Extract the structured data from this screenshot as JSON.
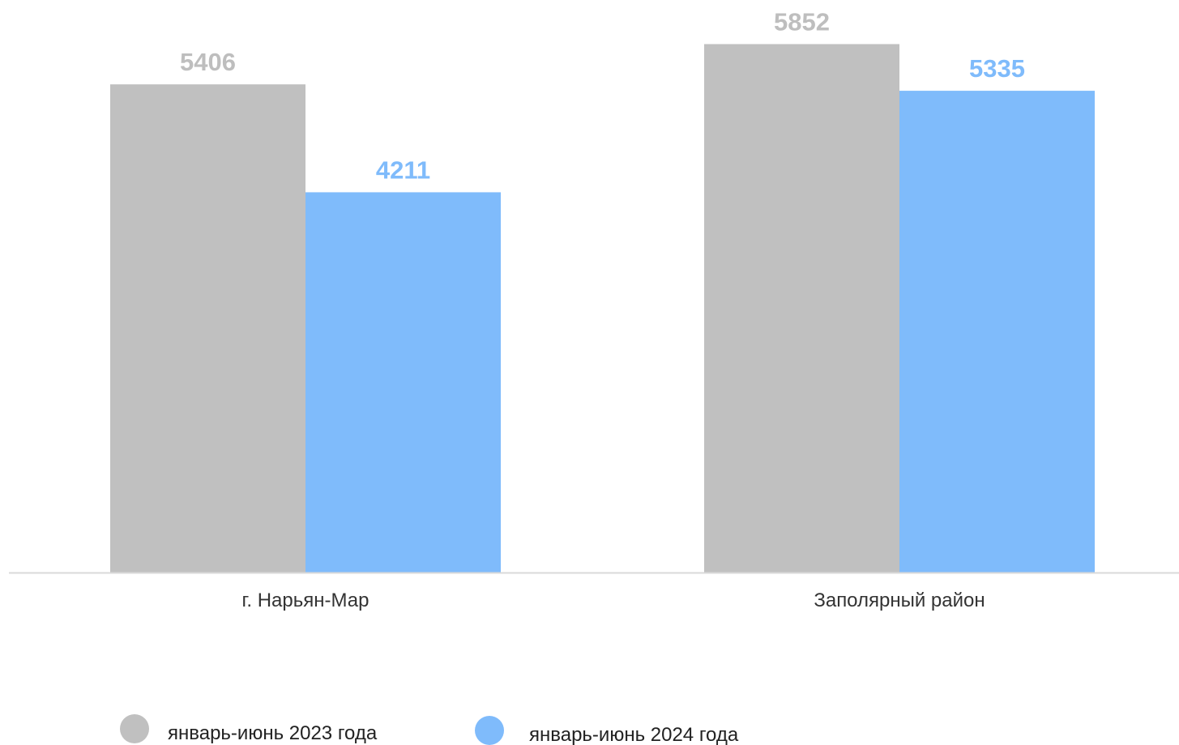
{
  "chart_data": {
    "type": "bar",
    "title": "",
    "xlabel": "",
    "ylabel": "",
    "categories": [
      "г. Нарьян-Мар",
      "Заполярный район"
    ],
    "series": [
      {
        "name": "январь-июнь 2023 года",
        "values": [
          5406,
          5852
        ],
        "color": "#c0c0c0",
        "label_color": "#bebebe"
      },
      {
        "name": "январь-июнь 2024 года",
        "values": [
          4211,
          5335
        ],
        "color": "#7fbbfb",
        "label_color": "#7fbbfb"
      }
    ],
    "ylim": [
      0,
      6500
    ],
    "grid": false,
    "legend_position": "bottom",
    "axis_color": "#d9d9d9"
  }
}
